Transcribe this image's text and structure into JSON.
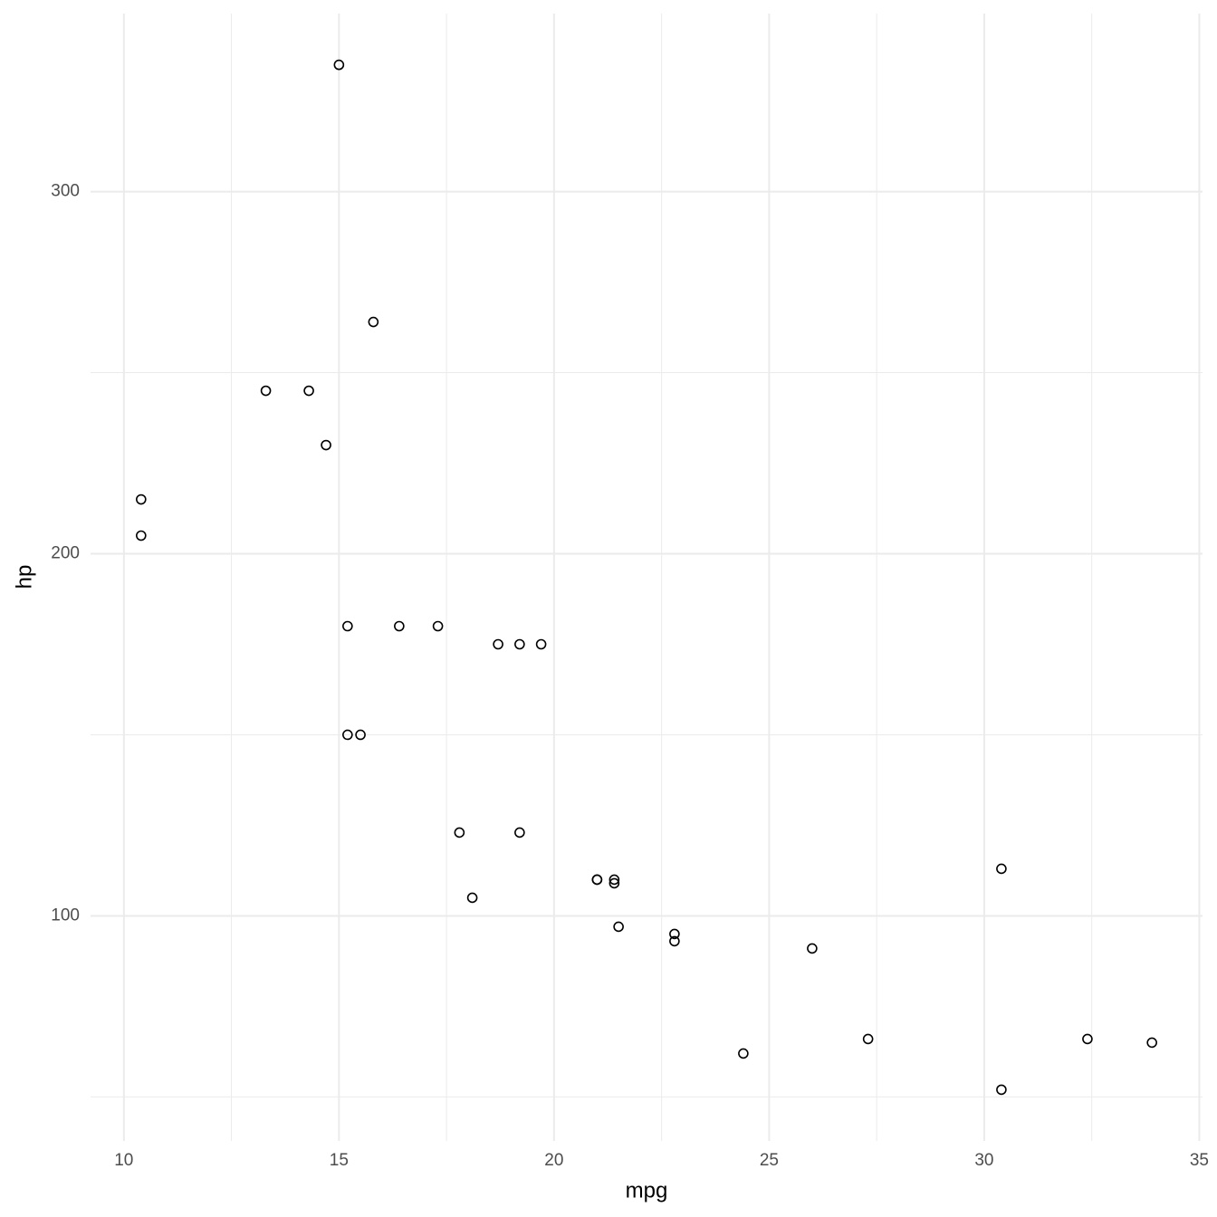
{
  "chart_data": {
    "type": "scatter",
    "x_label": "mpg",
    "y_label": "hp",
    "x": [
      21,
      21,
      22.8,
      21.4,
      18.7,
      18.1,
      14.3,
      24.4,
      22.8,
      19.2,
      17.8,
      16.4,
      17.3,
      15.2,
      10.4,
      10.4,
      14.7,
      32.4,
      30.4,
      33.9,
      21.5,
      15.5,
      15.2,
      13.3,
      19.2,
      27.3,
      26,
      30.4,
      15.8,
      19.7,
      15,
      21.4
    ],
    "series": [
      {
        "color": "#000000",
        "values": [
          110,
          110,
          93,
          110,
          175,
          105,
          245,
          62,
          95,
          123,
          123,
          180,
          180,
          180,
          205,
          215,
          230,
          66,
          52,
          65,
          97,
          150,
          150,
          245,
          175,
          66,
          91,
          113,
          264,
          175,
          335,
          109
        ]
      }
    ],
    "xlim": [
      9.225,
      35.075
    ],
    "ylim": [
      37.85,
      349.15
    ],
    "xticks": [
      10,
      15,
      20,
      25,
      30,
      35
    ],
    "yticks": [
      100,
      200,
      300
    ],
    "x_minor_ticks": [
      12.5,
      17.5,
      22.5,
      27.5,
      32.5
    ],
    "y_minor_ticks": [
      50,
      150,
      250
    ],
    "grid": true
  }
}
